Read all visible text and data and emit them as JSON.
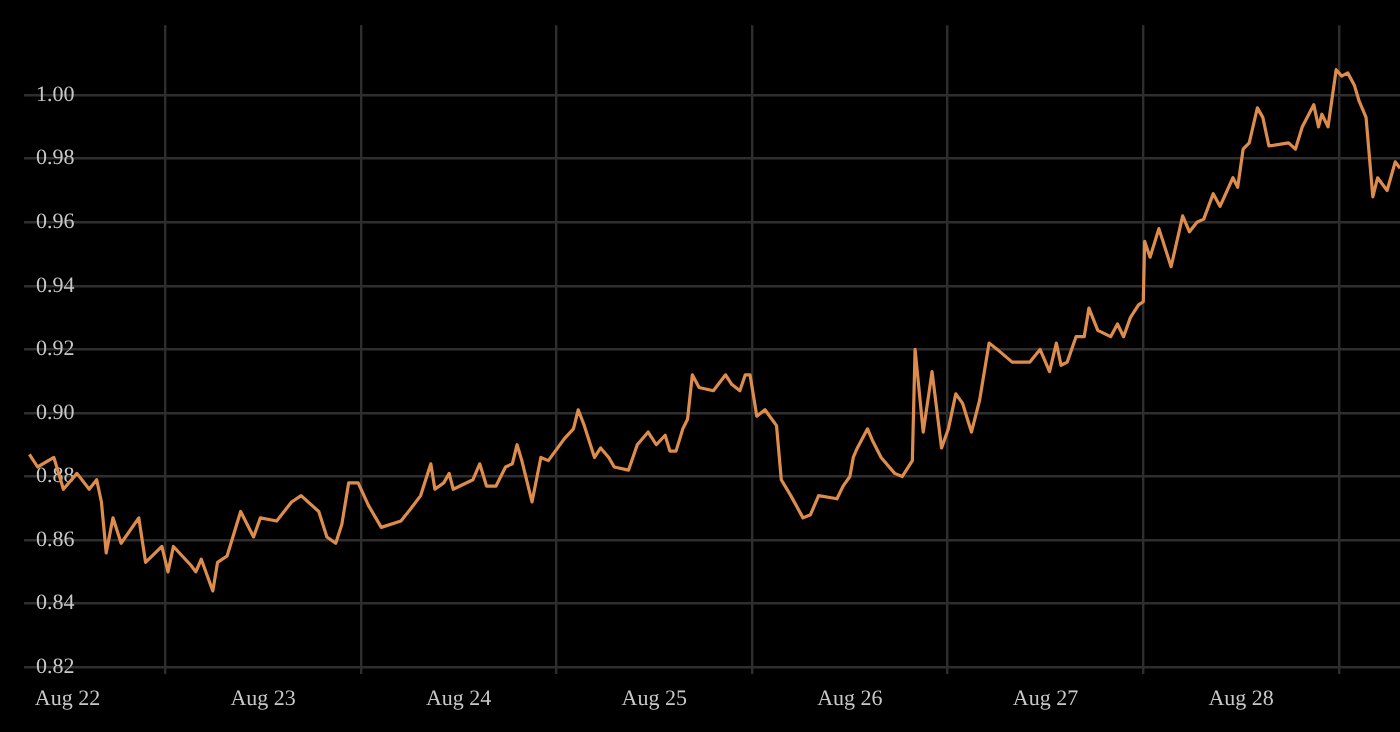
{
  "chart_data": {
    "type": "line",
    "color": "#dd8c4c",
    "marker": "none",
    "line_style": "solid",
    "grid": true,
    "legend": false,
    "x": [
      "--08-21T19:20",
      "--08-21T20:20",
      "--08-21T22:20",
      "--08-21T23:30",
      "--08-22T01:10",
      "--08-22T02:40",
      "--08-22T03:35",
      "--08-22T04:10",
      "--08-22T04:45",
      "--08-22T05:35",
      "--08-22T06:35",
      "--08-22T08:45",
      "--08-22T09:35",
      "--08-22T11:35",
      "--08-22T12:20",
      "--08-22T13:00",
      "--08-22T15:10",
      "--08-22T15:45",
      "--08-22T16:25",
      "--08-22T17:50",
      "--08-22T18:25",
      "--08-22T19:35",
      "--08-22T21:15",
      "--08-22T22:50",
      "--08-22T23:40",
      "--08-23T01:40",
      "--08-23T03:30",
      "--08-23T04:40",
      "--08-23T06:50",
      "--08-23T07:50",
      "--08-23T08:55",
      "--08-23T09:40",
      "--08-23T10:30",
      "--08-23T11:40",
      "--08-23T12:55",
      "--08-23T14:30",
      "--08-23T16:55",
      "--08-23T18:10",
      "--08-23T19:20",
      "--08-23T20:35",
      "--08-23T21:05",
      "--08-23T22:10",
      "--08-23T22:50",
      "--08-23T23:20",
      "--08-24T01:45",
      "--08-24T02:35",
      "--08-24T03:25",
      "--08-24T04:35",
      "--08-24T05:45",
      "--08-24T06:35",
      "--08-24T07:10",
      "--08-24T07:45",
      "--08-24T09:00",
      "--08-24T10:05",
      "--08-24T11:00",
      "--08-24T13:00",
      "--08-24T14:05",
      "--08-24T14:40",
      "--08-24T15:25",
      "--08-24T16:40",
      "--08-24T17:25",
      "--08-24T18:25",
      "--08-24T19:05",
      "--08-24T20:50",
      "--08-24T21:55",
      "--08-24T23:15",
      "--08-25T00:15",
      "--08-25T01:20",
      "--08-25T01:55",
      "--08-25T02:40",
      "--08-25T03:30",
      "--08-25T04:05",
      "--08-25T04:40",
      "--08-25T05:30",
      "--08-25T07:15",
      "--08-25T08:45",
      "--08-25T09:30",
      "--08-25T10:30",
      "--08-25T11:10",
      "--08-25T11:45",
      "--08-25T12:35",
      "--08-25T13:35",
      "--08-25T15:00",
      "--08-25T15:35",
      "--08-25T16:45",
      "--08-25T18:15",
      "--08-25T19:10",
      "--08-25T20:10",
      "--08-25T22:25",
      "--08-25T23:10",
      "--08-26T00:00",
      "--08-26T00:25",
      "--08-26T00:55",
      "--08-26T02:10",
      "--08-26T02:50",
      "--08-26T03:50",
      "--08-26T05:30",
      "--08-26T06:25",
      "--08-26T07:40",
      "--08-26T08:00",
      "--08-26T09:00",
      "--08-26T10:05",
      "--08-26T11:15",
      "--08-26T12:05",
      "--08-26T13:00",
      "--08-26T13:50",
      "--08-26T14:55",
      "--08-26T15:55",
      "--08-26T17:05",
      "--08-26T18:05",
      "--08-26T19:55",
      "--08-26T22:05",
      "--08-26T23:20",
      "--08-27T00:30",
      "--08-27T01:20",
      "--08-27T01:55",
      "--08-27T02:40",
      "--08-27T03:45",
      "--08-27T04:45",
      "--08-27T05:20",
      "--08-27T06:25",
      "--08-27T08:00",
      "--08-27T08:50",
      "--08-27T09:35",
      "--08-27T10:25",
      "--08-27T11:25",
      "--08-27T12:00",
      "--08-27T12:10",
      "--08-27T12:50",
      "--08-27T13:55",
      "--08-27T15:25",
      "--08-27T16:50",
      "--08-27T17:40",
      "--08-27T18:35",
      "--08-27T19:25",
      "--08-27T20:35",
      "--08-27T21:25",
      "--08-27T23:00",
      "--08-27T23:35",
      "--08-28T00:15",
      "--08-28T01:00",
      "--08-28T02:00",
      "--08-28T02:40",
      "--08-28T03:25",
      "--08-28T05:50",
      "--08-28T06:40",
      "--08-28T07:30",
      "--08-28T08:55",
      "--08-28T09:30",
      "--08-28T09:55",
      "--08-28T10:40",
      "--08-28T11:40",
      "--08-28T12:20",
      "--08-28T13:05",
      "--08-28T13:55",
      "--08-28T14:30",
      "--08-28T15:20",
      "--08-28T16:10",
      "--08-28T16:45",
      "--08-28T17:55",
      "--08-28T18:55",
      "--08-28T19:30"
    ],
    "values": [
      0.887,
      0.883,
      0.886,
      0.876,
      0.881,
      0.876,
      0.879,
      0.872,
      0.856,
      0.867,
      0.859,
      0.867,
      0.853,
      0.858,
      0.85,
      0.858,
      0.852,
      0.85,
      0.854,
      0.844,
      0.853,
      0.855,
      0.869,
      0.861,
      0.867,
      0.866,
      0.872,
      0.874,
      0.869,
      0.861,
      0.859,
      0.865,
      0.878,
      0.878,
      0.871,
      0.864,
      0.866,
      0.87,
      0.874,
      0.884,
      0.876,
      0.878,
      0.881,
      0.876,
      0.879,
      0.884,
      0.877,
      0.877,
      0.883,
      0.884,
      0.89,
      0.885,
      0.872,
      0.886,
      0.885,
      0.892,
      0.895,
      0.901,
      0.896,
      0.886,
      0.889,
      0.886,
      0.883,
      0.882,
      0.89,
      0.894,
      0.89,
      0.893,
      0.888,
      0.888,
      0.895,
      0.898,
      0.912,
      0.908,
      0.907,
      0.912,
      0.909,
      0.907,
      0.912,
      0.912,
      0.899,
      0.901,
      0.896,
      0.879,
      0.874,
      0.867,
      0.868,
      0.874,
      0.873,
      0.877,
      0.88,
      0.886,
      0.889,
      0.895,
      0.891,
      0.886,
      0.881,
      0.88,
      0.885,
      0.92,
      0.894,
      0.913,
      0.889,
      0.895,
      0.906,
      0.903,
      0.894,
      0.904,
      0.922,
      0.92,
      0.916,
      0.916,
      0.92,
      0.913,
      0.922,
      0.915,
      0.916,
      0.924,
      0.924,
      0.933,
      0.926,
      0.924,
      0.928,
      0.924,
      0.93,
      0.934,
      0.935,
      0.954,
      0.949,
      0.958,
      0.946,
      0.962,
      0.957,
      0.96,
      0.961,
      0.969,
      0.965,
      0.974,
      0.971,
      0.983,
      0.985,
      0.996,
      0.993,
      0.984,
      0.985,
      0.983,
      0.99,
      0.997,
      0.99,
      0.994,
      0.99,
      1.008,
      1.006,
      1.007,
      1.003,
      0.998,
      0.993,
      0.968,
      0.974,
      0.97,
      0.979,
      0.977
    ],
    "xlim": [
      "--08-21T18:40",
      "--08-28T19:30"
    ],
    "xticks": [
      {
        "value": "--08-22",
        "label": "Aug 22"
      },
      {
        "value": "--08-22T12:00",
        "label": null
      },
      {
        "value": "--08-23",
        "label": "Aug 23"
      },
      {
        "value": "--08-23T12:00",
        "label": null
      },
      {
        "value": "--08-24",
        "label": "Aug 24"
      },
      {
        "value": "--08-24T12:00",
        "label": null
      },
      {
        "value": "--08-25",
        "label": "Aug 25"
      },
      {
        "value": "--08-25T12:00",
        "label": null
      },
      {
        "value": "--08-26",
        "label": "Aug 26"
      },
      {
        "value": "--08-26T12:00",
        "label": null
      },
      {
        "value": "--08-27",
        "label": "Aug 27"
      },
      {
        "value": "--08-27T12:00",
        "label": null
      },
      {
        "value": "--08-28",
        "label": "Aug 28"
      },
      {
        "value": "--08-28T12:00",
        "label": null
      }
    ],
    "ylim": [
      0.818,
      1.022
    ],
    "yticks": [
      {
        "value": 0.82,
        "label": "0.82"
      },
      {
        "value": 0.84,
        "label": "0.84"
      },
      {
        "value": 0.86,
        "label": "0.86"
      },
      {
        "value": 0.88,
        "label": "0.88"
      },
      {
        "value": 0.9,
        "label": "0.90"
      },
      {
        "value": 0.92,
        "label": "0.92"
      },
      {
        "value": 0.94,
        "label": "0.94"
      },
      {
        "value": 0.96,
        "label": "0.96"
      },
      {
        "value": 0.98,
        "label": "0.98"
      },
      {
        "value": 1,
        "label": "1.00"
      }
    ]
  }
}
